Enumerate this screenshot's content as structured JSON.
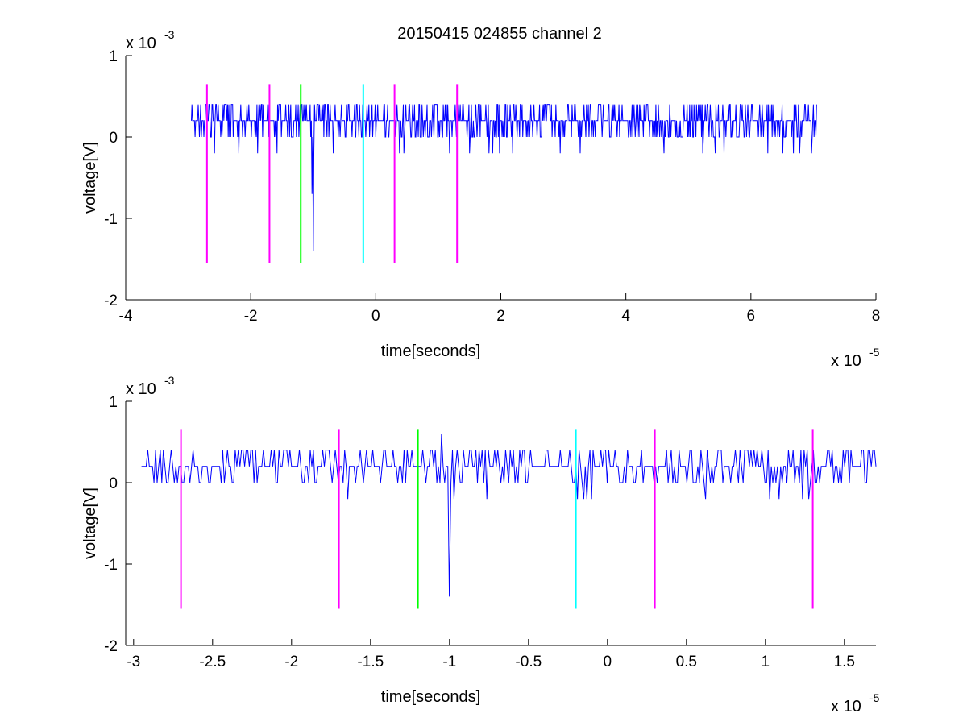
{
  "title": "20150415 024855 channel 2",
  "colors": {
    "signal": "#0000ff",
    "magenta": "#ff00ff",
    "green": "#00ff00",
    "cyan": "#00ffff",
    "axis": "#000000"
  },
  "chart_data": [
    {
      "type": "line",
      "title": "20150415 024855 channel 2",
      "xlabel": "time[seconds]",
      "ylabel": "voltage[V]",
      "x_scale_label": {
        "base": "x 10",
        "exponent": "-5"
      },
      "y_scale_label": {
        "base": "x 10",
        "exponent": "-3"
      },
      "xlim": [
        -4,
        8
      ],
      "ylim": [
        -2,
        1
      ],
      "x_ticks": [
        -4,
        -2,
        0,
        2,
        4,
        6,
        8
      ],
      "x_tick_labels": [
        "-4",
        "-2",
        "0",
        "2",
        "4",
        "6",
        "8"
      ],
      "y_ticks": [
        -2,
        -1,
        0,
        1
      ],
      "y_tick_labels": [
        "-2",
        "-1",
        "0",
        "1"
      ],
      "grid": false,
      "series": [
        {
          "x_range": [
            -2.95,
            7.05
          ],
          "baseline": 0.2,
          "levels": [
            0.0,
            0.2,
            0.4
          ],
          "color": "#0000ff",
          "spikes": [
            {
              "x": -1.0,
              "y": -1.4
            },
            {
              "x": -1.02,
              "y": -0.7
            }
          ]
        }
      ],
      "markers": [
        {
          "x": -2.7,
          "y_top": 0.65,
          "y_bottom": -1.55,
          "color": "#ff00ff"
        },
        {
          "x": -1.7,
          "y_top": 0.65,
          "y_bottom": -1.55,
          "color": "#ff00ff"
        },
        {
          "x": -1.2,
          "y_top": 0.65,
          "y_bottom": -1.55,
          "color": "#00ff00"
        },
        {
          "x": -0.2,
          "y_top": 0.65,
          "y_bottom": -1.55,
          "color": "#00ffff"
        },
        {
          "x": 0.3,
          "y_top": 0.65,
          "y_bottom": -1.55,
          "color": "#ff00ff"
        },
        {
          "x": 1.3,
          "y_top": 0.65,
          "y_bottom": -1.55,
          "color": "#ff00ff"
        }
      ]
    },
    {
      "type": "line",
      "title": "",
      "xlabel": "time[seconds]",
      "ylabel": "voltage[V]",
      "x_scale_label": {
        "base": "x 10",
        "exponent": "-5"
      },
      "y_scale_label": {
        "base": "x 10",
        "exponent": "-3"
      },
      "xlim": [
        -3.05,
        1.7
      ],
      "ylim": [
        -2,
        1
      ],
      "x_ticks": [
        -3,
        -2.5,
        -2,
        -1.5,
        -1,
        -0.5,
        0,
        0.5,
        1,
        1.5
      ],
      "x_tick_labels": [
        "-3",
        "-2.5",
        "-2",
        "-1.5",
        "-1",
        "-0.5",
        "0",
        "0.5",
        "1",
        "1.5"
      ],
      "y_ticks": [
        -2,
        -1,
        0,
        1
      ],
      "y_tick_labels": [
        "-2",
        "-1",
        "0",
        "1"
      ],
      "grid": false,
      "series": [
        {
          "x_range": [
            -2.95,
            1.7
          ],
          "baseline": 0.2,
          "levels": [
            0.0,
            0.2,
            0.4
          ],
          "color": "#0000ff",
          "spikes": [
            {
              "x": -1.0,
              "y": -1.4
            },
            {
              "x": -0.97,
              "y": -0.2
            },
            {
              "x": -1.05,
              "y": 0.6
            }
          ]
        }
      ],
      "markers": [
        {
          "x": -2.7,
          "y_top": 0.65,
          "y_bottom": -1.55,
          "color": "#ff00ff"
        },
        {
          "x": -1.7,
          "y_top": 0.65,
          "y_bottom": -1.55,
          "color": "#ff00ff"
        },
        {
          "x": -1.2,
          "y_top": 0.65,
          "y_bottom": -1.55,
          "color": "#00ff00"
        },
        {
          "x": -0.2,
          "y_top": 0.65,
          "y_bottom": -1.55,
          "color": "#00ffff"
        },
        {
          "x": 0.3,
          "y_top": 0.65,
          "y_bottom": -1.55,
          "color": "#ff00ff"
        },
        {
          "x": 1.3,
          "y_top": 0.65,
          "y_bottom": -1.55,
          "color": "#ff00ff"
        }
      ]
    }
  ]
}
